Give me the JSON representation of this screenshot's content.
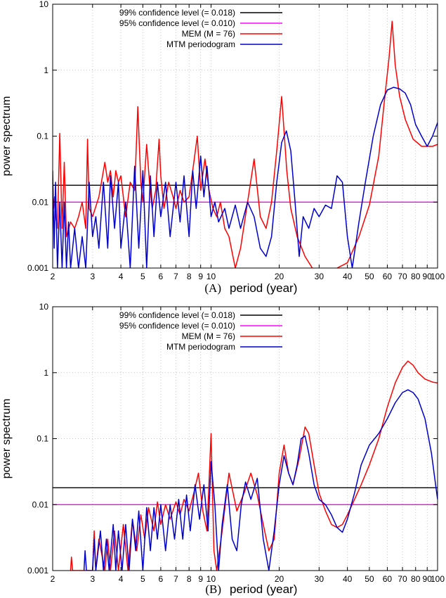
{
  "chart_data": [
    {
      "panel_label": "(A)",
      "type": "line",
      "xlabel": "period (year)",
      "ylabel": "power spectrum",
      "x_scale": "log",
      "y_scale": "log",
      "xlim": [
        2,
        100
      ],
      "ylim": [
        0.001,
        10
      ],
      "x_ticks": [
        2,
        3,
        4,
        5,
        6,
        7,
        8,
        9,
        10,
        20,
        30,
        40,
        50,
        60,
        70,
        80,
        90,
        100
      ],
      "y_ticks": [
        0.001,
        0.01,
        0.1,
        1,
        10
      ],
      "x_tick_labels": [
        "2",
        "3",
        "4",
        "5",
        "6",
        "7",
        "8",
        "9",
        "10",
        "20",
        "30",
        "40",
        "50",
        "60",
        "70",
        "80",
        "90",
        "100"
      ],
      "y_tick_labels": [
        "0.001",
        "0.01",
        "0.1",
        "1",
        "10"
      ],
      "grid": true,
      "legend_position": "top-left",
      "series": [
        {
          "name": "99% confidence level (= 0.018)",
          "color": "#000000",
          "x": [
            2,
            100
          ],
          "y": [
            0.018,
            0.018
          ]
        },
        {
          "name": "95% confidence level (= 0.010)",
          "color": "#ff00ff",
          "x": [
            2,
            100
          ],
          "y": [
            0.01,
            0.01
          ]
        },
        {
          "name": "MEM (M = 76)",
          "color": "#ff0000",
          "x": [
            2.0,
            2.02,
            2.04,
            2.06,
            2.1,
            2.15,
            2.2,
            2.25,
            2.3,
            2.4,
            2.5,
            2.6,
            2.7,
            2.8,
            2.85,
            2.9,
            3.0,
            3.2,
            3.4,
            3.5,
            3.6,
            3.7,
            3.8,
            3.9,
            4.0,
            4.2,
            4.4,
            4.6,
            4.75,
            4.9,
            5.0,
            5.2,
            5.35,
            5.5,
            5.7,
            5.9,
            6.0,
            6.2,
            6.5,
            6.8,
            7.0,
            7.3,
            7.6,
            8.0,
            8.3,
            8.7,
            9.0,
            9.4,
            9.8,
            10.2,
            10.6,
            11.0,
            11.5,
            12.0,
            12.8,
            13.5,
            14.5,
            15.5,
            16.5,
            17.5,
            18.5,
            19.5,
            20.5,
            21.0,
            21.6,
            22.5,
            24.0,
            26.0,
            28.0,
            30.0,
            33.0,
            36.0,
            40.0,
            45.0,
            50.0,
            55.0,
            58.0,
            61.0,
            63.0,
            65.0,
            68.0,
            72.0,
            78.0,
            85.0,
            90.0,
            95.0,
            100.0
          ],
          "y": [
            0.02,
            0.008,
            0.012,
            0.006,
            0.004,
            0.11,
            0.004,
            0.04,
            0.003,
            0.005,
            0.004,
            0.006,
            0.01,
            0.004,
            0.09,
            0.008,
            0.006,
            0.012,
            0.04,
            0.02,
            0.03,
            0.012,
            0.03,
            0.02,
            0.025,
            0.006,
            0.02,
            0.015,
            0.28,
            0.02,
            0.01,
            0.075,
            0.02,
            0.008,
            0.015,
            0.09,
            0.025,
            0.008,
            0.02,
            0.012,
            0.008,
            0.015,
            0.01,
            0.012,
            0.03,
            0.1,
            0.015,
            0.045,
            0.015,
            0.008,
            0.006,
            0.01,
            0.004,
            0.003,
            0.001,
            0.002,
            0.01,
            0.045,
            0.006,
            0.004,
            0.01,
            0.06,
            0.4,
            0.12,
            0.03,
            0.008,
            0.003,
            0.0015,
            0.001,
            0.0007,
            0.0008,
            0.001,
            0.0012,
            0.003,
            0.009,
            0.05,
            0.3,
            1.5,
            5.5,
            1.2,
            0.4,
            0.18,
            0.09,
            0.07,
            0.07,
            0.07,
            0.075
          ]
        },
        {
          "name": "MTM periodogram",
          "color": "#0000cc",
          "x": [
            2.0,
            2.03,
            2.06,
            2.1,
            2.15,
            2.2,
            2.25,
            2.3,
            2.35,
            2.4,
            2.5,
            2.6,
            2.7,
            2.8,
            2.9,
            3.0,
            3.1,
            3.2,
            3.35,
            3.5,
            3.6,
            3.75,
            3.9,
            4.0,
            4.2,
            4.4,
            4.6,
            4.8,
            5.0,
            5.2,
            5.4,
            5.6,
            5.8,
            6.0,
            6.3,
            6.6,
            7.0,
            7.3,
            7.6,
            8.0,
            8.3,
            8.6,
            9.0,
            9.3,
            9.6,
            10.0,
            10.4,
            10.8,
            11.5,
            12.0,
            12.8,
            13.5,
            14.5,
            15.5,
            16.5,
            17.5,
            18.5,
            19.5,
            20.5,
            21.5,
            22.5,
            23.5,
            24.5,
            25.5,
            27.0,
            28.5,
            30.0,
            32.0,
            34.0,
            36.0,
            38.0,
            40.0,
            42.0,
            45.0,
            48.0,
            52.0,
            56.0,
            60.0,
            64.0,
            68.0,
            72.0,
            76.0,
            80.0,
            85.0,
            90.0,
            95.0,
            100.0
          ],
          "y": [
            0.03,
            0.002,
            0.02,
            0.001,
            0.01,
            0.001,
            0.01,
            0.001,
            0.005,
            0.001,
            0.004,
            0.001,
            0.003,
            0.001,
            0.02,
            0.003,
            0.006,
            0.002,
            0.02,
            0.002,
            0.025,
            0.004,
            0.02,
            0.002,
            0.01,
            0.001,
            0.035,
            0.002,
            0.03,
            0.001,
            0.025,
            0.003,
            0.02,
            0.006,
            0.02,
            0.003,
            0.02,
            0.005,
            0.025,
            0.003,
            0.03,
            0.008,
            0.05,
            0.012,
            0.035,
            0.006,
            0.01,
            0.005,
            0.008,
            0.004,
            0.009,
            0.004,
            0.01,
            0.006,
            0.002,
            0.0015,
            0.003,
            0.02,
            0.08,
            0.12,
            0.06,
            0.01,
            0.0015,
            0.006,
            0.004,
            0.008,
            0.006,
            0.009,
            0.008,
            0.025,
            0.02,
            0.003,
            0.001,
            0.005,
            0.02,
            0.1,
            0.3,
            0.5,
            0.55,
            0.52,
            0.45,
            0.3,
            0.15,
            0.1,
            0.07,
            0.1,
            0.16
          ]
        }
      ]
    },
    {
      "panel_label": "(B)",
      "type": "line",
      "xlabel": "period (year)",
      "ylabel": "power spectrum",
      "x_scale": "log",
      "y_scale": "log",
      "xlim": [
        2,
        100
      ],
      "ylim": [
        0.001,
        10
      ],
      "x_ticks": [
        2,
        3,
        4,
        5,
        6,
        7,
        8,
        9,
        10,
        20,
        30,
        40,
        50,
        60,
        70,
        80,
        90,
        100
      ],
      "y_ticks": [
        0.001,
        0.01,
        0.1,
        1,
        10
      ],
      "x_tick_labels": [
        "2",
        "3",
        "4",
        "5",
        "6",
        "7",
        "8",
        "9",
        "10",
        "20",
        "30",
        "40",
        "50",
        "60",
        "70",
        "80",
        "90",
        "100"
      ],
      "y_tick_labels": [
        "0.001",
        "0.01",
        "0.1",
        "1",
        "10"
      ],
      "grid": true,
      "legend_position": "top-left",
      "series": [
        {
          "name": "99% confidence level (= 0.018)",
          "color": "#000000",
          "x": [
            2,
            100
          ],
          "y": [
            0.018,
            0.018
          ]
        },
        {
          "name": "95% confidence level (= 0.010)",
          "color": "#ff00ff",
          "x": [
            2,
            100
          ],
          "y": [
            0.01,
            0.01
          ]
        },
        {
          "name": "MEM (M = 76)",
          "color": "#ff0000",
          "x": [
            2.4,
            2.42,
            2.45,
            3.0,
            3.05,
            3.1,
            3.2,
            3.4,
            3.5,
            3.6,
            3.75,
            3.9,
            4.1,
            4.3,
            4.5,
            4.7,
            4.9,
            5.1,
            5.3,
            5.6,
            5.8,
            6.0,
            6.3,
            6.6,
            7.0,
            7.3,
            7.6,
            8.0,
            8.4,
            8.8,
            9.2,
            9.6,
            10.0,
            10.3,
            10.6,
            11.2,
            12.0,
            13.0,
            14.0,
            15.0,
            16.0,
            17.0,
            18.0,
            19.0,
            20.0,
            21.0,
            22.0,
            23.0,
            24.5,
            26.0,
            27.0,
            28.5,
            30.0,
            32.0,
            34.0,
            36.0,
            38.0,
            40.0,
            43.0,
            46.0,
            50.0,
            55.0,
            60.0,
            65.0,
            70.0,
            74.0,
            78.0,
            82.0,
            88.0,
            95.0,
            100.0
          ],
          "y": [
            0.001,
            0.0016,
            0.001,
            0.001,
            0.004,
            0.001,
            0.003,
            0.001,
            0.003,
            0.001,
            0.004,
            0.001,
            0.005,
            0.001,
            0.006,
            0.002,
            0.007,
            0.003,
            0.009,
            0.004,
            0.011,
            0.005,
            0.01,
            0.006,
            0.011,
            0.007,
            0.012,
            0.008,
            0.015,
            0.03,
            0.008,
            0.004,
            0.12,
            0.002,
            0.001,
            0.004,
            0.03,
            0.008,
            0.015,
            0.03,
            0.014,
            0.005,
            0.002,
            0.003,
            0.03,
            0.08,
            0.03,
            0.02,
            0.05,
            0.15,
            0.12,
            0.04,
            0.015,
            0.008,
            0.005,
            0.0045,
            0.005,
            0.007,
            0.012,
            0.02,
            0.04,
            0.1,
            0.3,
            0.7,
            1.2,
            1.5,
            1.3,
            1.0,
            0.8,
            0.72,
            0.7
          ]
        },
        {
          "name": "MTM periodogram",
          "color": "#0000cc",
          "x": [
            2.75,
            2.78,
            2.82,
            3.0,
            3.05,
            3.1,
            3.25,
            3.35,
            3.45,
            3.55,
            3.7,
            3.8,
            3.9,
            4.05,
            4.2,
            4.35,
            4.5,
            4.65,
            4.8,
            5.0,
            5.2,
            5.4,
            5.6,
            5.8,
            6.0,
            6.3,
            6.6,
            6.9,
            7.2,
            7.5,
            7.8,
            8.1,
            8.5,
            8.9,
            9.3,
            9.7,
            10.0,
            10.4,
            10.8,
            11.2,
            11.8,
            12.4,
            13.0,
            13.6,
            14.2,
            15.0,
            16.0,
            17.0,
            18.0,
            19.0,
            20.0,
            21.0,
            22.0,
            23.0,
            24.0,
            25.0,
            26.0,
            27.0,
            28.5,
            30.0,
            32.0,
            34.0,
            36.0,
            38.0,
            40.0,
            43.0,
            46.0,
            50.0,
            55.0,
            60.0,
            65.0,
            70.0,
            74.0,
            78.0,
            82.0,
            88.0,
            94.0,
            98.0,
            100.0
          ],
          "y": [
            0.001,
            0.002,
            0.001,
            0.001,
            0.003,
            0.001,
            0.004,
            0.001,
            0.003,
            0.001,
            0.005,
            0.001,
            0.004,
            0.001,
            0.005,
            0.001,
            0.006,
            0.002,
            0.008,
            0.001,
            0.009,
            0.002,
            0.009,
            0.003,
            0.01,
            0.002,
            0.01,
            0.003,
            0.012,
            0.003,
            0.014,
            0.004,
            0.02,
            0.006,
            0.02,
            0.004,
            0.045,
            0.01,
            0.001,
            0.005,
            0.02,
            0.003,
            0.002,
            0.01,
            0.022,
            0.012,
            0.025,
            0.003,
            0.001,
            0.004,
            0.02,
            0.055,
            0.03,
            0.02,
            0.04,
            0.1,
            0.11,
            0.06,
            0.02,
            0.012,
            0.01,
            0.007,
            0.0045,
            0.0038,
            0.006,
            0.015,
            0.04,
            0.08,
            0.12,
            0.2,
            0.35,
            0.5,
            0.55,
            0.5,
            0.4,
            0.2,
            0.06,
            0.02,
            0.012
          ]
        }
      ]
    }
  ]
}
